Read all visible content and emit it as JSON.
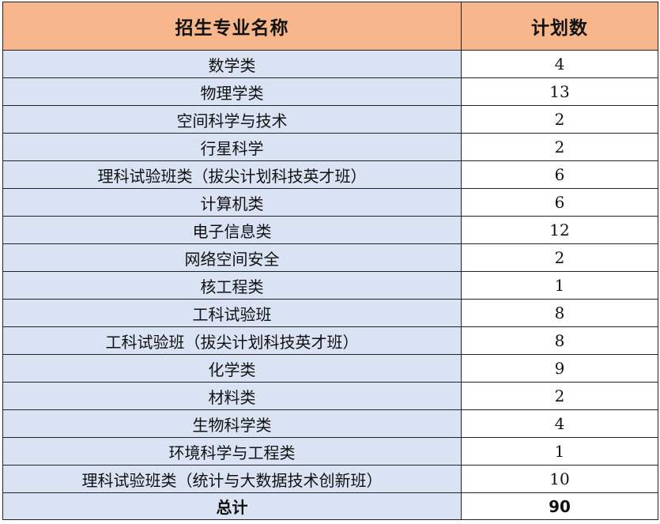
{
  "table": {
    "headers": {
      "major": "招生专业名称",
      "count": "计划数"
    },
    "rows": [
      {
        "major": "数学类",
        "count": "4"
      },
      {
        "major": "物理学类",
        "count": "13"
      },
      {
        "major": "空间科学与技术",
        "count": "2"
      },
      {
        "major": "行星科学",
        "count": "2"
      },
      {
        "major": "理科试验班类（拔尖计划科技英才班）",
        "count": "6"
      },
      {
        "major": "计算机类",
        "count": "6"
      },
      {
        "major": "电子信息类",
        "count": "12"
      },
      {
        "major": "网络空间安全",
        "count": "2"
      },
      {
        "major": "核工程类",
        "count": "1"
      },
      {
        "major": "工科试验班",
        "count": "8"
      },
      {
        "major": "工科试验班（拔尖计划科技英才班）",
        "count": "8"
      },
      {
        "major": "化学类",
        "count": "9"
      },
      {
        "major": "材料类",
        "count": "2"
      },
      {
        "major": "生物科学类",
        "count": "4"
      },
      {
        "major": "环境科学与工程类",
        "count": "1"
      },
      {
        "major": "理科试验班类（统计与大数据技术创新班）",
        "count": "10"
      }
    ],
    "total": {
      "label": "总计",
      "count": "90"
    }
  },
  "colors": {
    "header_bg": "#f7b68b",
    "name_col_bg": "#dae3f3",
    "count_col_bg": "#ffffff",
    "border": "#222222"
  }
}
